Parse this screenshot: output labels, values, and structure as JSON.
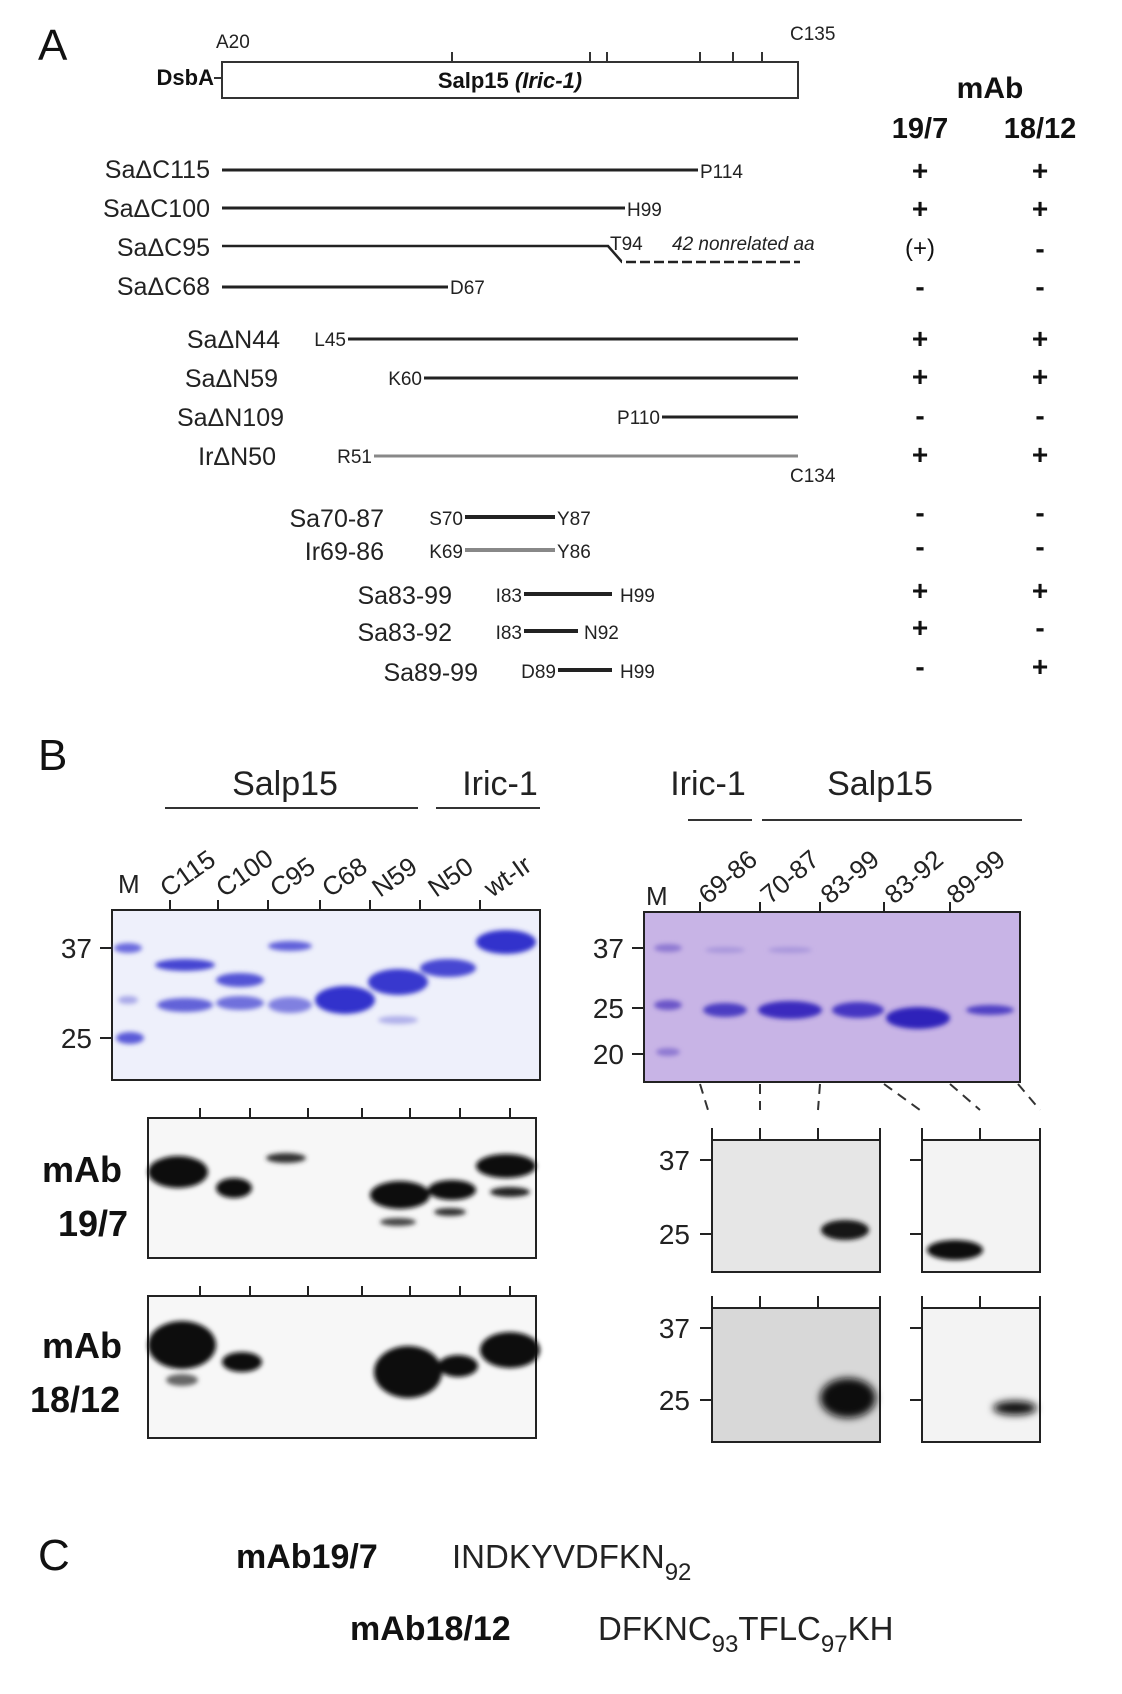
{
  "panel_a": {
    "letter": "A",
    "fusion_partner": "DsbA",
    "protein_label": "Salp15 ",
    "protein_label_italic": "(Iric-1)",
    "start_residue": "A20",
    "end_residue": "C135",
    "mab_header": "mAb",
    "mab_columns": [
      "19/7",
      "18/12"
    ],
    "constructs": [
      {
        "name": "SaΔC115",
        "left_label": "",
        "right_label": "P114",
        "mab_19_7": "+",
        "mab_18_12": "+"
      },
      {
        "name": "SaΔC100",
        "left_label": "",
        "right_label": "H99",
        "mab_19_7": "+",
        "mab_18_12": "+"
      },
      {
        "name": "SaΔC95",
        "left_label": "",
        "right_label": "T94",
        "note": "42 nonrelated aa",
        "mab_19_7": "(+)",
        "mab_18_12": "-"
      },
      {
        "name": "SaΔC68",
        "left_label": "",
        "right_label": "D67",
        "mab_19_7": "-",
        "mab_18_12": "-"
      },
      {
        "name": "SaΔN44",
        "left_label": "L45",
        "right_label": "",
        "mab_19_7": "+",
        "mab_18_12": "+"
      },
      {
        "name": "SaΔN59",
        "left_label": "K60",
        "right_label": "",
        "mab_19_7": "+",
        "mab_18_12": "+"
      },
      {
        "name": "SaΔN109",
        "left_label": "P110",
        "right_label": "",
        "mab_19_7": "-",
        "mab_18_12": "-"
      },
      {
        "name": "IrΔN50",
        "left_label": "R51",
        "right_label": "C134",
        "mab_19_7": "+",
        "mab_18_12": "+"
      },
      {
        "name": "Sa70-87",
        "left_label": "S70",
        "right_label": "Y87",
        "mab_19_7": "-",
        "mab_18_12": "-"
      },
      {
        "name": "Ir69-86",
        "left_label": "K69",
        "right_label": "Y86",
        "mab_19_7": "-",
        "mab_18_12": "-"
      },
      {
        "name": "Sa83-99",
        "left_label": "I83",
        "right_label": "H99",
        "mab_19_7": "+",
        "mab_18_12": "+"
      },
      {
        "name": "Sa83-92",
        "left_label": "I83",
        "right_label": "N92",
        "mab_19_7": "+",
        "mab_18_12": "-"
      },
      {
        "name": "Sa89-99",
        "left_label": "D89",
        "right_label": "H99",
        "mab_19_7": "-",
        "mab_18_12": "+"
      }
    ]
  },
  "panel_b": {
    "letter": "B",
    "left_groups": [
      "Salp15",
      "Iric-1"
    ],
    "left_lanes": [
      "M",
      "C115",
      "C100",
      "C95",
      "C68",
      "N59",
      "N50",
      "wt-Ir"
    ],
    "left_markers": [
      "37",
      "25"
    ],
    "right_groups": [
      "Iric-1",
      "Salp15"
    ],
    "right_lanes": [
      "M",
      "69-86",
      "70-87",
      "83-99",
      "83-92",
      "89-99"
    ],
    "right_markers": [
      "37",
      "25",
      "20"
    ],
    "blot_markers": [
      "37",
      "25"
    ],
    "blot1_label_line1": "mAb",
    "blot1_label_line2": "19/7",
    "blot2_label_line1": "mAb",
    "blot2_label_line2": "18/12"
  },
  "panel_c": {
    "letter": "C",
    "mab1_name": "mAb19/7",
    "mab1_seq": "INDKYVDFKN",
    "mab1_sub": "92",
    "mab2_name": "mAb18/12",
    "mab2_seq_a": "DFKNC",
    "mab2_sub_a": "93",
    "mab2_seq_b": "TFLC",
    "mab2_sub_b": "97",
    "mab2_seq_c": "KH"
  },
  "colors": {
    "gel_stain": "#3a3ad8",
    "gel_bg_left": "#eef0fb",
    "gel_bg_right": "#c8b4e6",
    "blot_band": "#0d0d0d"
  }
}
